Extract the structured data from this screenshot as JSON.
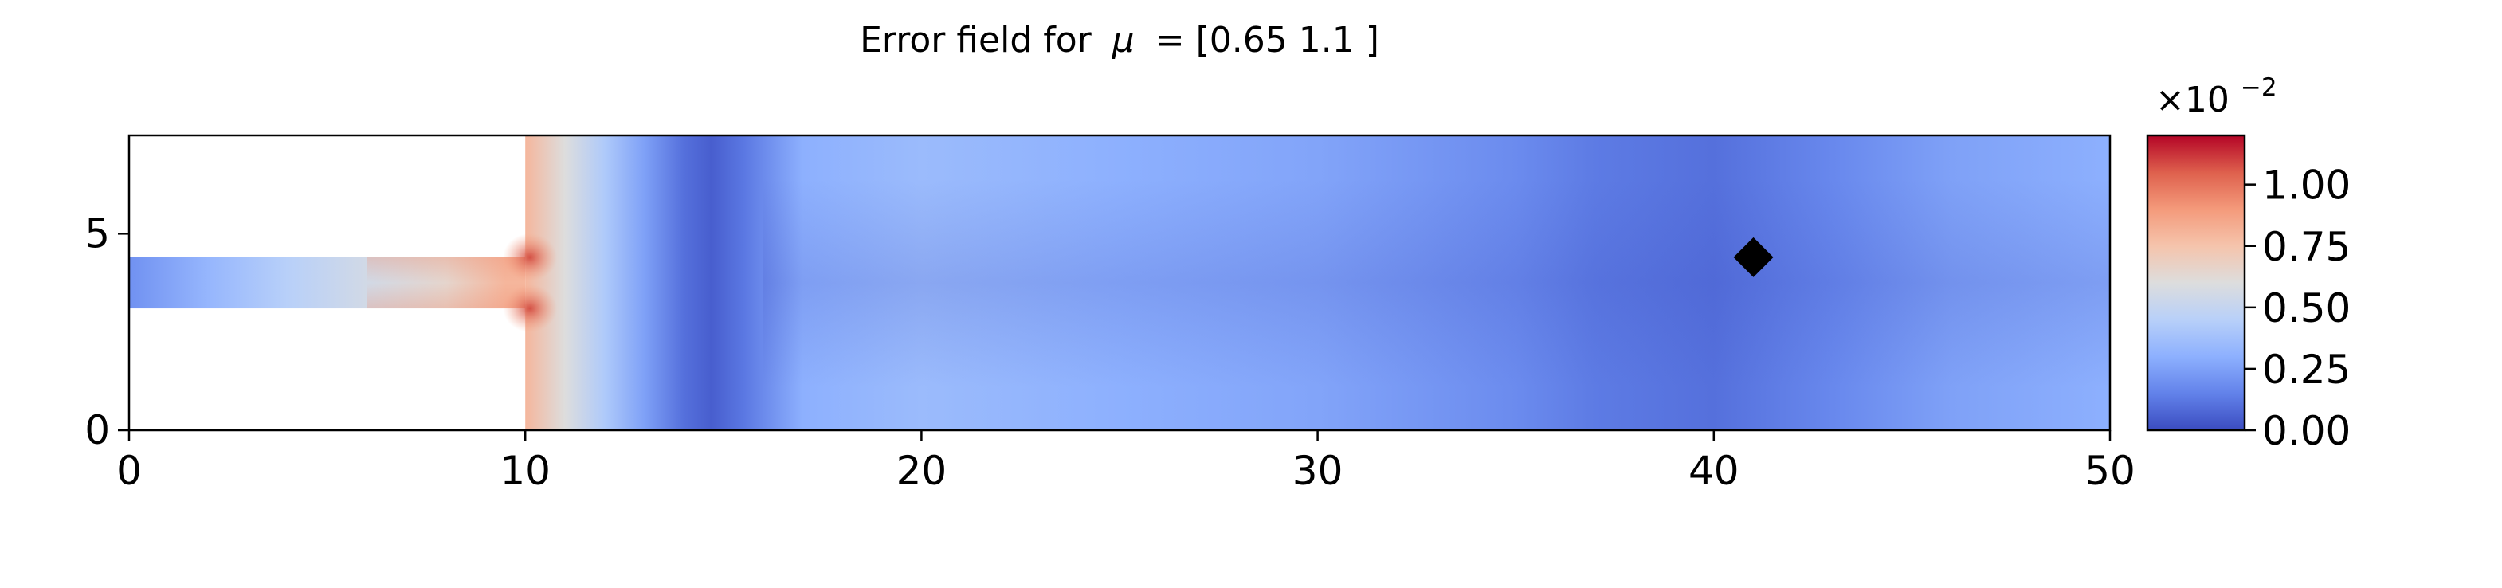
{
  "chart_data": {
    "type": "heatmap",
    "title_prefix": "Error field for",
    "title_symbol": "μ",
    "title_suffix": "= [0.65 1.1 ]",
    "xlim": [
      0,
      50
    ],
    "ylim": [
      0,
      7.5
    ],
    "x_ticks": [
      0,
      10,
      20,
      30,
      40,
      50
    ],
    "y_ticks": [
      0,
      5
    ],
    "domain": {
      "inlet_x": [
        0,
        10
      ],
      "inlet_y": [
        3.1,
        4.4
      ],
      "chamber_x": [
        10,
        50
      ],
      "chamber_y": [
        0,
        7.5
      ]
    },
    "marker": {
      "shape": "diamond",
      "x": 41,
      "y": 4.4
    },
    "colorbar": {
      "colormap": "coolwarm",
      "range": [
        0,
        1.2
      ],
      "ticks": [
        "0.00",
        "0.25",
        "0.50",
        "0.75",
        "1.00"
      ],
      "tick_values": [
        0.0,
        0.25,
        0.5,
        0.75,
        1.0
      ],
      "exponent_base": "×10",
      "exponent_power": "−2"
    },
    "field_samples": {
      "x": [
        0,
        2,
        4,
        6,
        8,
        9.5,
        10,
        11,
        12,
        13,
        14,
        14.7,
        15.5,
        17,
        20,
        25,
        30,
        35,
        37,
        40,
        43,
        46,
        50
      ],
      "value": [
        0.2,
        0.33,
        0.45,
        0.55,
        0.65,
        0.8,
        0.8,
        0.6,
        0.42,
        0.25,
        0.1,
        0.05,
        0.12,
        0.3,
        0.35,
        0.3,
        0.26,
        0.18,
        0.13,
        0.1,
        0.17,
        0.25,
        0.3
      ]
    },
    "colors": {
      "cold": "#3b4cc0",
      "neutral": "#dddddd",
      "hot": "#b40426",
      "marker": "#000000"
    }
  }
}
